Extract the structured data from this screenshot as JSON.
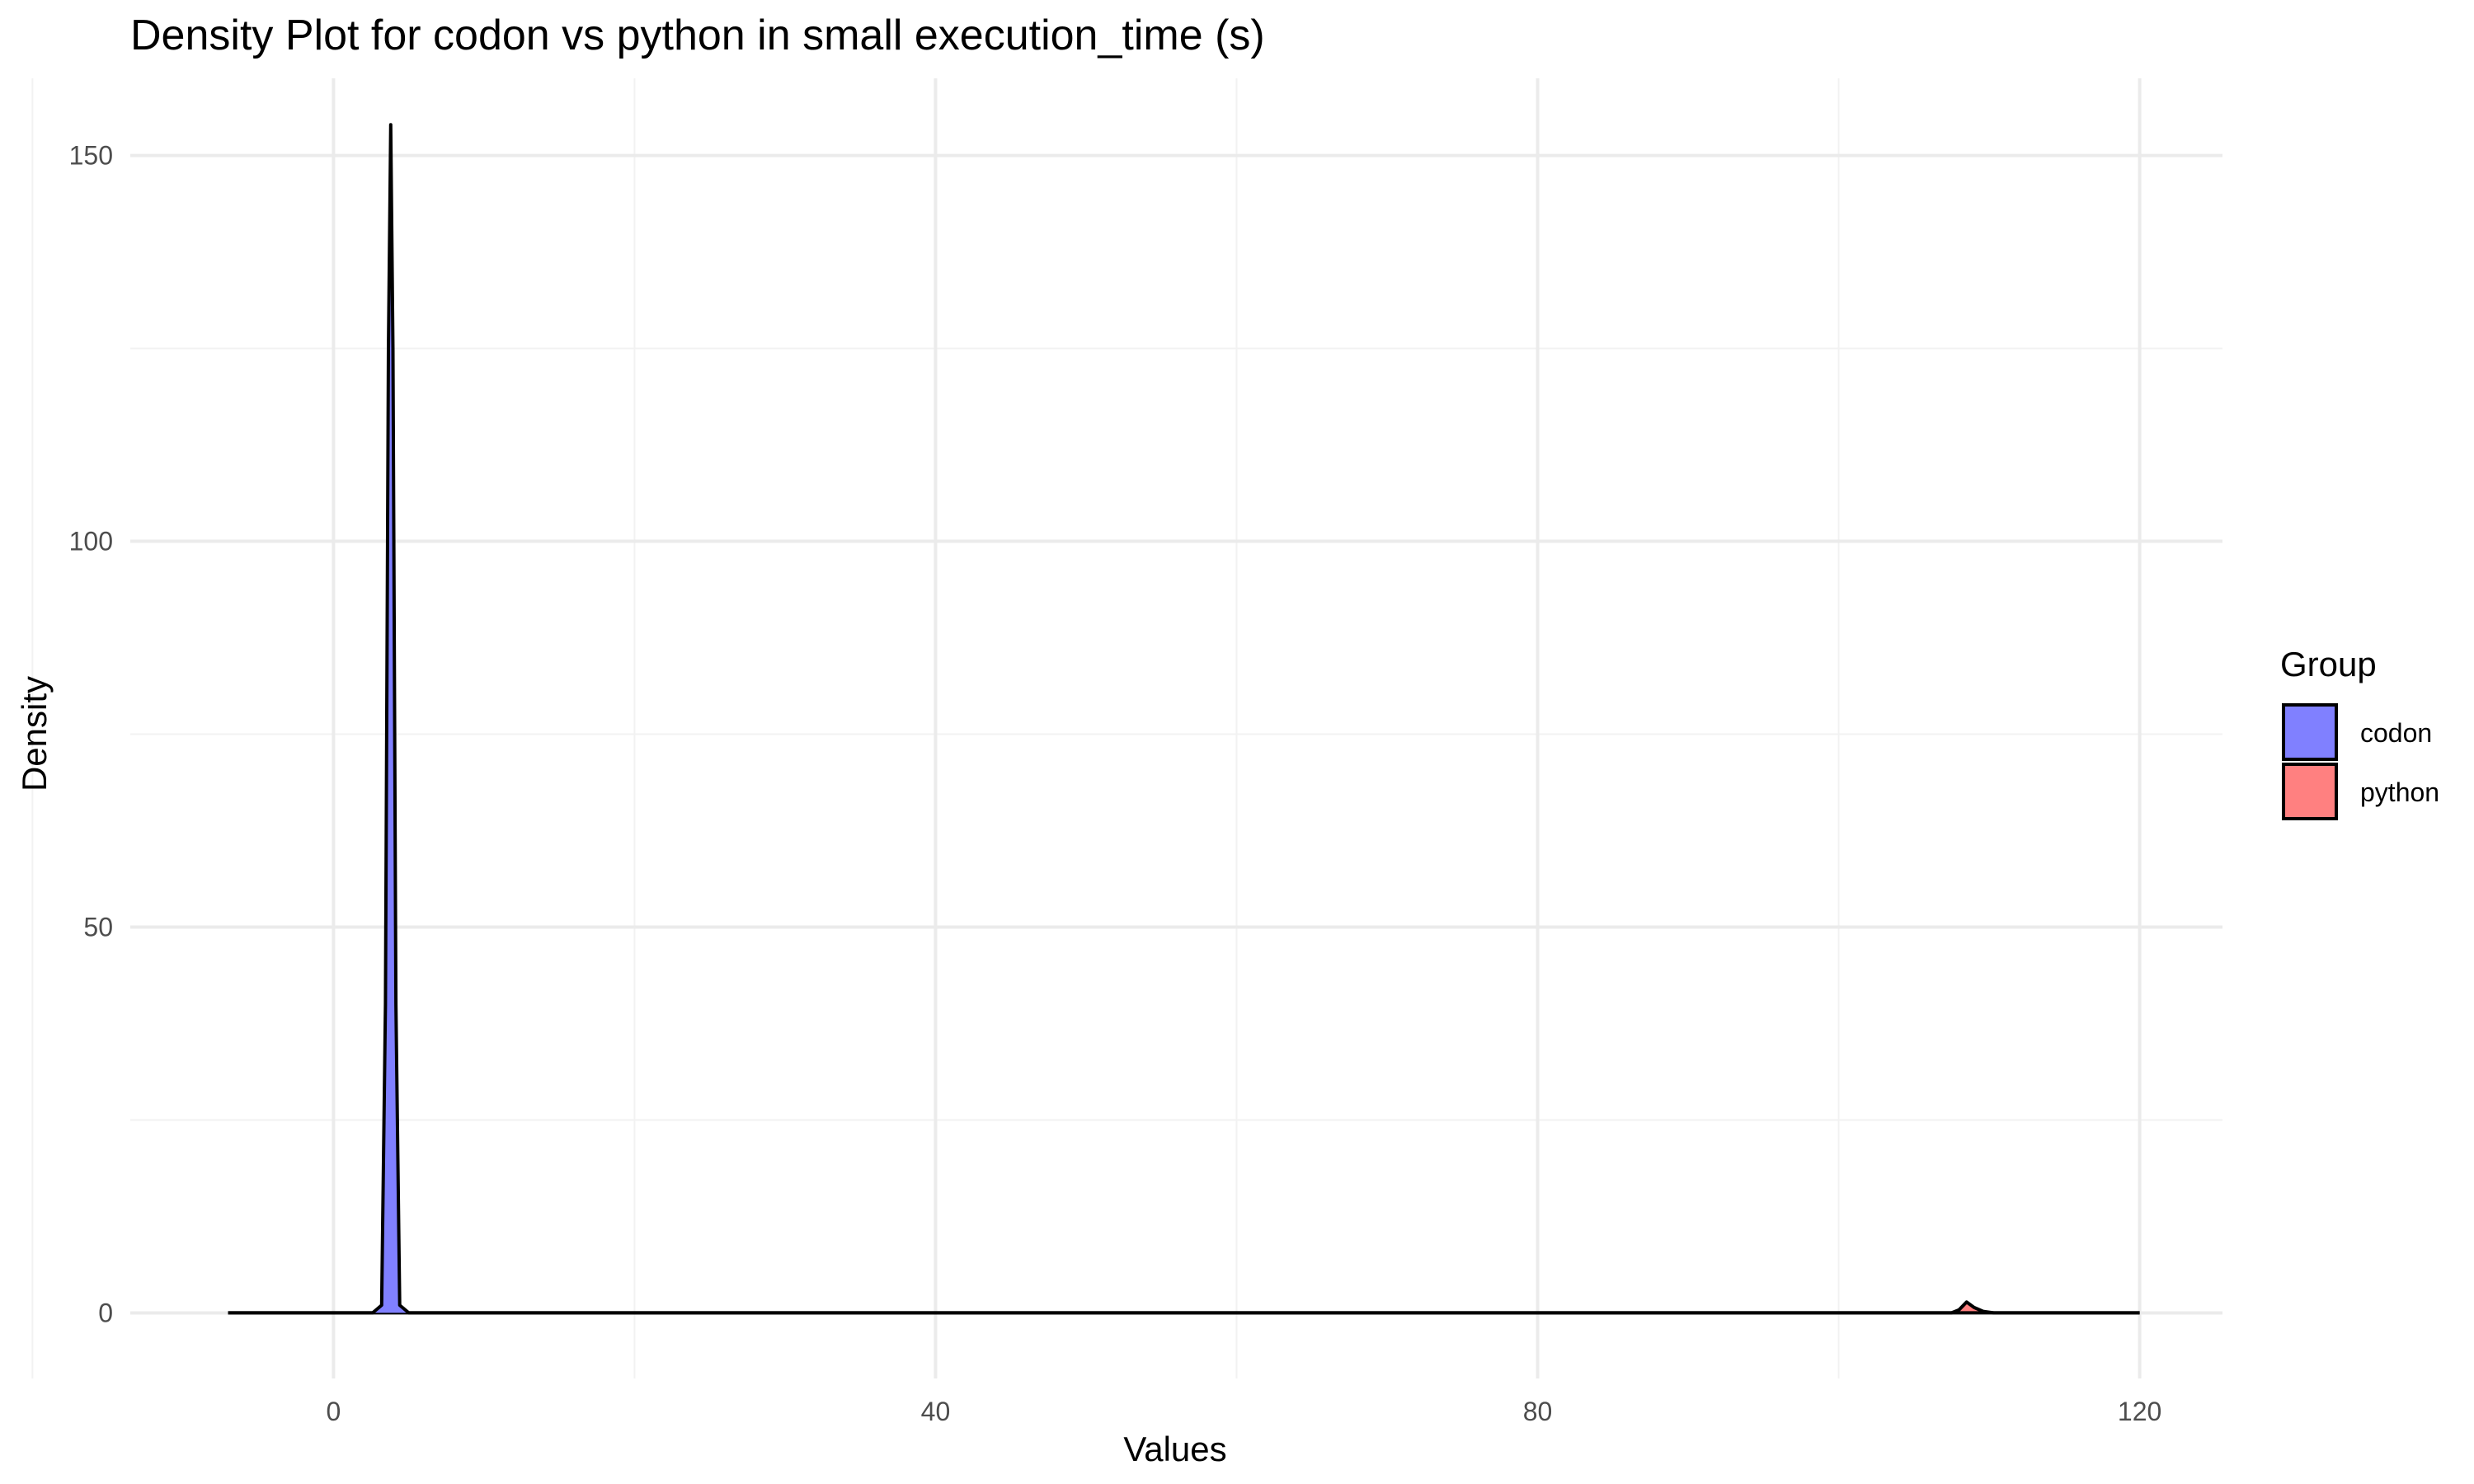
{
  "chart_data": {
    "type": "area",
    "title": "Density Plot for codon vs python in small execution_time (s)",
    "xlabel": "Values",
    "ylabel": "Density",
    "xlim": [
      -13.5,
      125.5
    ],
    "ylim": [
      -8.5,
      160
    ],
    "x_ticks": [
      0,
      40,
      80,
      120
    ],
    "y_ticks": [
      0,
      50,
      100,
      150
    ],
    "grid": true,
    "legend": {
      "title": "Group",
      "position": "right"
    },
    "series": [
      {
        "name": "codon",
        "color": "#8080ff",
        "points": [
          [
            -7,
            0
          ],
          [
            2.6,
            0
          ],
          [
            3.2,
            1
          ],
          [
            3.45,
            40
          ],
          [
            3.65,
            125
          ],
          [
            3.8,
            154
          ],
          [
            3.95,
            125
          ],
          [
            4.15,
            40
          ],
          [
            4.4,
            1
          ],
          [
            5.0,
            0
          ],
          [
            120,
            0
          ]
        ]
      },
      {
        "name": "python",
        "color": "#ff8080",
        "points": [
          [
            -7,
            0
          ],
          [
            107.5,
            0
          ],
          [
            108.0,
            0.4
          ],
          [
            108.5,
            1.4
          ],
          [
            109.0,
            0.7
          ],
          [
            109.6,
            0.2
          ],
          [
            110.3,
            0
          ],
          [
            120,
            0
          ]
        ]
      }
    ]
  }
}
